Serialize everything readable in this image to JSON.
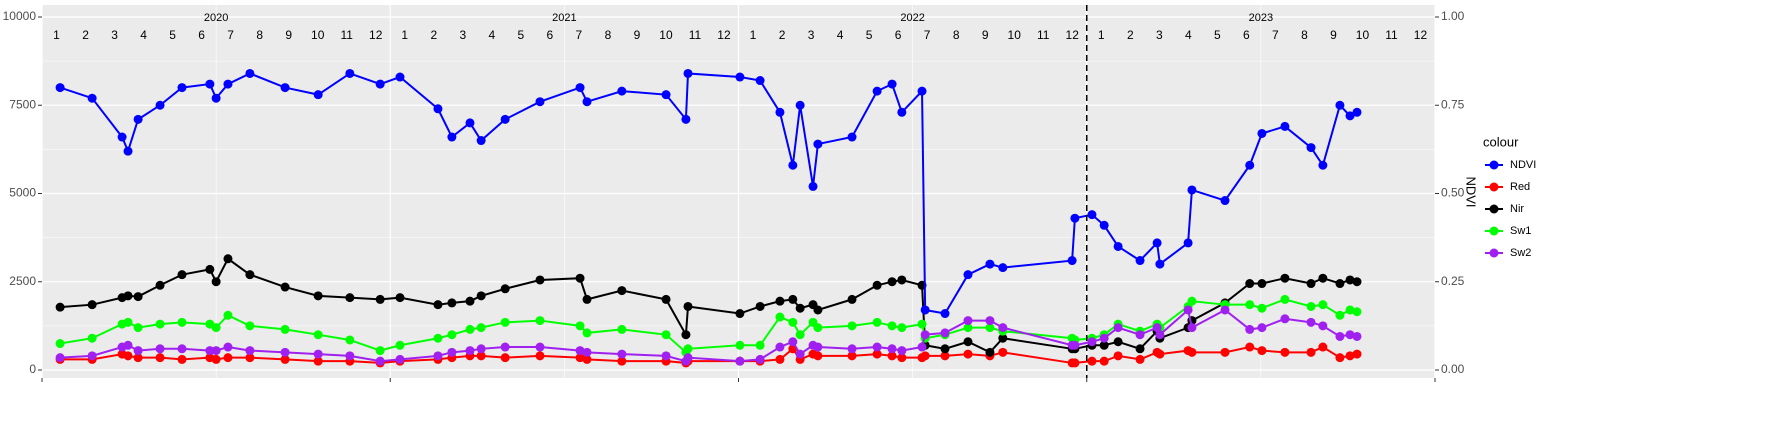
{
  "chart_data": {
    "type": "line",
    "years": [
      2020,
      2021,
      2022,
      2023
    ],
    "months": [
      "1",
      "2",
      "3",
      "4",
      "5",
      "6",
      "7",
      "8",
      "9",
      "10",
      "11",
      "12"
    ],
    "y2label": "NDVI",
    "legend_title": "colour",
    "legend": "right",
    "grid": true,
    "vline": 2023,
    "xlim": [
      2020,
      2024
    ],
    "xticks": [
      2020,
      2021,
      2022,
      2023,
      2024
    ],
    "ylim": [
      -227,
      10340
    ],
    "yticks": [
      0,
      2500,
      5000,
      7500,
      10000
    ],
    "y2lim": [
      -0.0227,
      1.034
    ],
    "y2ticks": [
      {
        "value": 0,
        "label": "0.00"
      },
      {
        "value": 0.25,
        "label": "0.25"
      },
      {
        "value": 0.5,
        "label": "0.50"
      },
      {
        "value": 0.75,
        "label": "0.75"
      },
      {
        "value": 1,
        "label": "1.00"
      }
    ],
    "x": [
      2020.052,
      2020.144,
      2020.23,
      2020.247,
      2020.276,
      2020.339,
      2020.402,
      2020.482,
      2020.5,
      2020.534,
      2020.597,
      2020.698,
      2020.793,
      2020.884,
      2020.971,
      2021.028,
      2021.137,
      2021.177,
      2021.229,
      2021.261,
      2021.33,
      2021.43,
      2021.545,
      2021.565,
      2021.665,
      2021.792,
      2021.849,
      2021.855,
      2022.004,
      2022.062,
      2022.119,
      2022.156,
      2022.177,
      2022.214,
      2022.228,
      2022.326,
      2022.398,
      2022.441,
      2022.469,
      2022.527,
      2022.536,
      2022.593,
      2022.659,
      2022.722,
      2022.759,
      2022.958,
      2022.966,
      2023.015,
      2023.05,
      2023.09,
      2023.153,
      2023.202,
      2023.21,
      2023.291,
      2023.302,
      2023.397,
      2023.468,
      2023.503,
      2023.569,
      2023.644,
      2023.678,
      2023.727,
      2023.756,
      2023.776
    ],
    "series": [
      {
        "name": "NDVI",
        "color": "#0000FF",
        "axis": "y2",
        "values": [
          0.8,
          0.77,
          0.66,
          0.62,
          0.71,
          0.75,
          0.8,
          0.81,
          0.77,
          0.81,
          0.84,
          0.8,
          0.78,
          0.84,
          0.81,
          0.83,
          0.74,
          0.66,
          0.7,
          0.65,
          0.71,
          0.76,
          0.8,
          0.76,
          0.79,
          0.78,
          0.71,
          0.84,
          0.83,
          0.82,
          0.73,
          0.58,
          0.75,
          0.52,
          0.64,
          0.66,
          0.79,
          0.81,
          0.73,
          0.79,
          0.17,
          0.16,
          0.27,
          0.3,
          0.29,
          0.31,
          0.43,
          0.44,
          0.41,
          0.35,
          0.31,
          0.36,
          0.3,
          0.36,
          0.51,
          0.48,
          0.58,
          0.67,
          0.69,
          0.63,
          0.58,
          0.75,
          0.72,
          0.73
        ]
      },
      {
        "name": "Red",
        "color": "#FF0000",
        "values": [
          300,
          300,
          450,
          400,
          350,
          350,
          300,
          350,
          300,
          350,
          350,
          300,
          250,
          250,
          200,
          250,
          300,
          350,
          400,
          400,
          350,
          400,
          350,
          300,
          250,
          250,
          200,
          250,
          250,
          250,
          300,
          600,
          300,
          450,
          400,
          400,
          450,
          400,
          350,
          350,
          400,
          400,
          450,
          400,
          500,
          200,
          200,
          250,
          250,
          400,
          300,
          500,
          450,
          550,
          500,
          500,
          650,
          550,
          500,
          500,
          650,
          350,
          400,
          450
        ]
      },
      {
        "name": "Nir",
        "color": "#000000",
        "values": [
          1780,
          1850,
          2050,
          2100,
          2080,
          2400,
          2700,
          2850,
          2500,
          3150,
          2700,
          2350,
          2100,
          2050,
          2000,
          2050,
          1850,
          1900,
          1950,
          2100,
          2300,
          2550,
          2600,
          2000,
          2250,
          2000,
          1000,
          1800,
          1600,
          1800,
          1950,
          2000,
          1750,
          1850,
          1700,
          2000,
          2400,
          2500,
          2550,
          2400,
          700,
          600,
          800,
          500,
          900,
          600,
          600,
          700,
          700,
          800,
          600,
          1100,
          900,
          1200,
          1400,
          1900,
          2450,
          2450,
          2600,
          2450,
          2600,
          2450,
          2550,
          2500
        ]
      },
      {
        "name": "Sw1",
        "color": "#00FF00",
        "values": [
          750,
          900,
          1300,
          1350,
          1200,
          1300,
          1350,
          1300,
          1200,
          1550,
          1250,
          1150,
          1000,
          850,
          550,
          700,
          900,
          1000,
          1150,
          1200,
          1350,
          1400,
          1250,
          1050,
          1150,
          1000,
          500,
          600,
          700,
          700,
          1500,
          1350,
          1000,
          1350,
          1200,
          1250,
          1350,
          1250,
          1200,
          1300,
          900,
          1000,
          1200,
          1200,
          1100,
          900,
          850,
          900,
          1000,
          1300,
          1100,
          1300,
          1200,
          1800,
          1950,
          1850,
          1850,
          1750,
          2000,
          1800,
          1850,
          1550,
          1700,
          1650
        ]
      },
      {
        "name": "Sw2",
        "color": "#A020F0",
        "values": [
          350,
          400,
          650,
          700,
          550,
          600,
          600,
          550,
          550,
          650,
          550,
          500,
          450,
          400,
          250,
          300,
          400,
          500,
          550,
          600,
          650,
          650,
          550,
          500,
          450,
          400,
          250,
          350,
          250,
          300,
          650,
          800,
          450,
          700,
          650,
          600,
          650,
          600,
          550,
          650,
          1000,
          1050,
          1400,
          1400,
          1200,
          700,
          700,
          800,
          900,
          1200,
          1000,
          1200,
          1000,
          1700,
          1200,
          1700,
          1150,
          1200,
          1450,
          1350,
          1250,
          950,
          1000,
          950
        ]
      }
    ]
  }
}
